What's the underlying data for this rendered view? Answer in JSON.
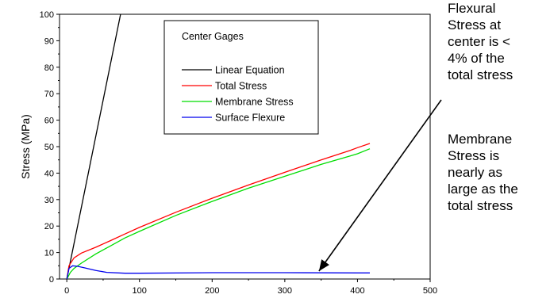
{
  "chart_data": {
    "type": "line",
    "xlabel": "",
    "ylabel": "Stress (MPa)",
    "xlim": [
      -10,
      500
    ],
    "ylim": [
      0,
      100
    ],
    "xticks": [
      0,
      100,
      200,
      300,
      400,
      500
    ],
    "yticks": [
      0,
      10,
      20,
      30,
      40,
      50,
      60,
      70,
      80,
      90,
      100
    ],
    "grid": false,
    "legend_title": "Center Gages",
    "legend_position": "top-center",
    "series": [
      {
        "name": "Linear Equation",
        "color": "#000000",
        "x": [
          0,
          74
        ],
        "y": [
          0,
          100
        ]
      },
      {
        "name": "Total Stress",
        "color": "#ff0000",
        "x": [
          0,
          3,
          10,
          20,
          40,
          60,
          80,
          100,
          150,
          200,
          250,
          300,
          350,
          390,
          400,
          417
        ],
        "y": [
          0,
          5,
          8,
          9.8,
          12,
          14.5,
          17,
          19.5,
          25.2,
          30.5,
          35.5,
          40.3,
          45,
          48.6,
          49.6,
          51.2
        ]
      },
      {
        "name": "Membrane Stress",
        "color": "#00dd00",
        "x": [
          0,
          5,
          10,
          20,
          40,
          60,
          80,
          100,
          150,
          200,
          250,
          300,
          350,
          390,
          400,
          417
        ],
        "y": [
          0,
          2.5,
          4,
          6,
          9.5,
          12.5,
          15.5,
          18,
          24,
          29.3,
          34.3,
          38.8,
          43.3,
          46.5,
          47.3,
          49.2
        ]
      },
      {
        "name": "Surface Flexure",
        "color": "#0000ee",
        "x": [
          0,
          3,
          8,
          15,
          25,
          40,
          55,
          80,
          100,
          200,
          300,
          400,
          417
        ],
        "y": [
          0,
          4,
          5,
          4.8,
          4.2,
          3.2,
          2.5,
          2.2,
          2.2,
          2.4,
          2.4,
          2.3,
          2.3
        ]
      }
    ],
    "annotations": [
      {
        "text": "Flexural\nStress at\ncenter is <\n4% of the\ntotal stress"
      },
      {
        "text": "Membrane\nStress is\nnearly as\nlarge as the\ntotal stress"
      }
    ]
  }
}
